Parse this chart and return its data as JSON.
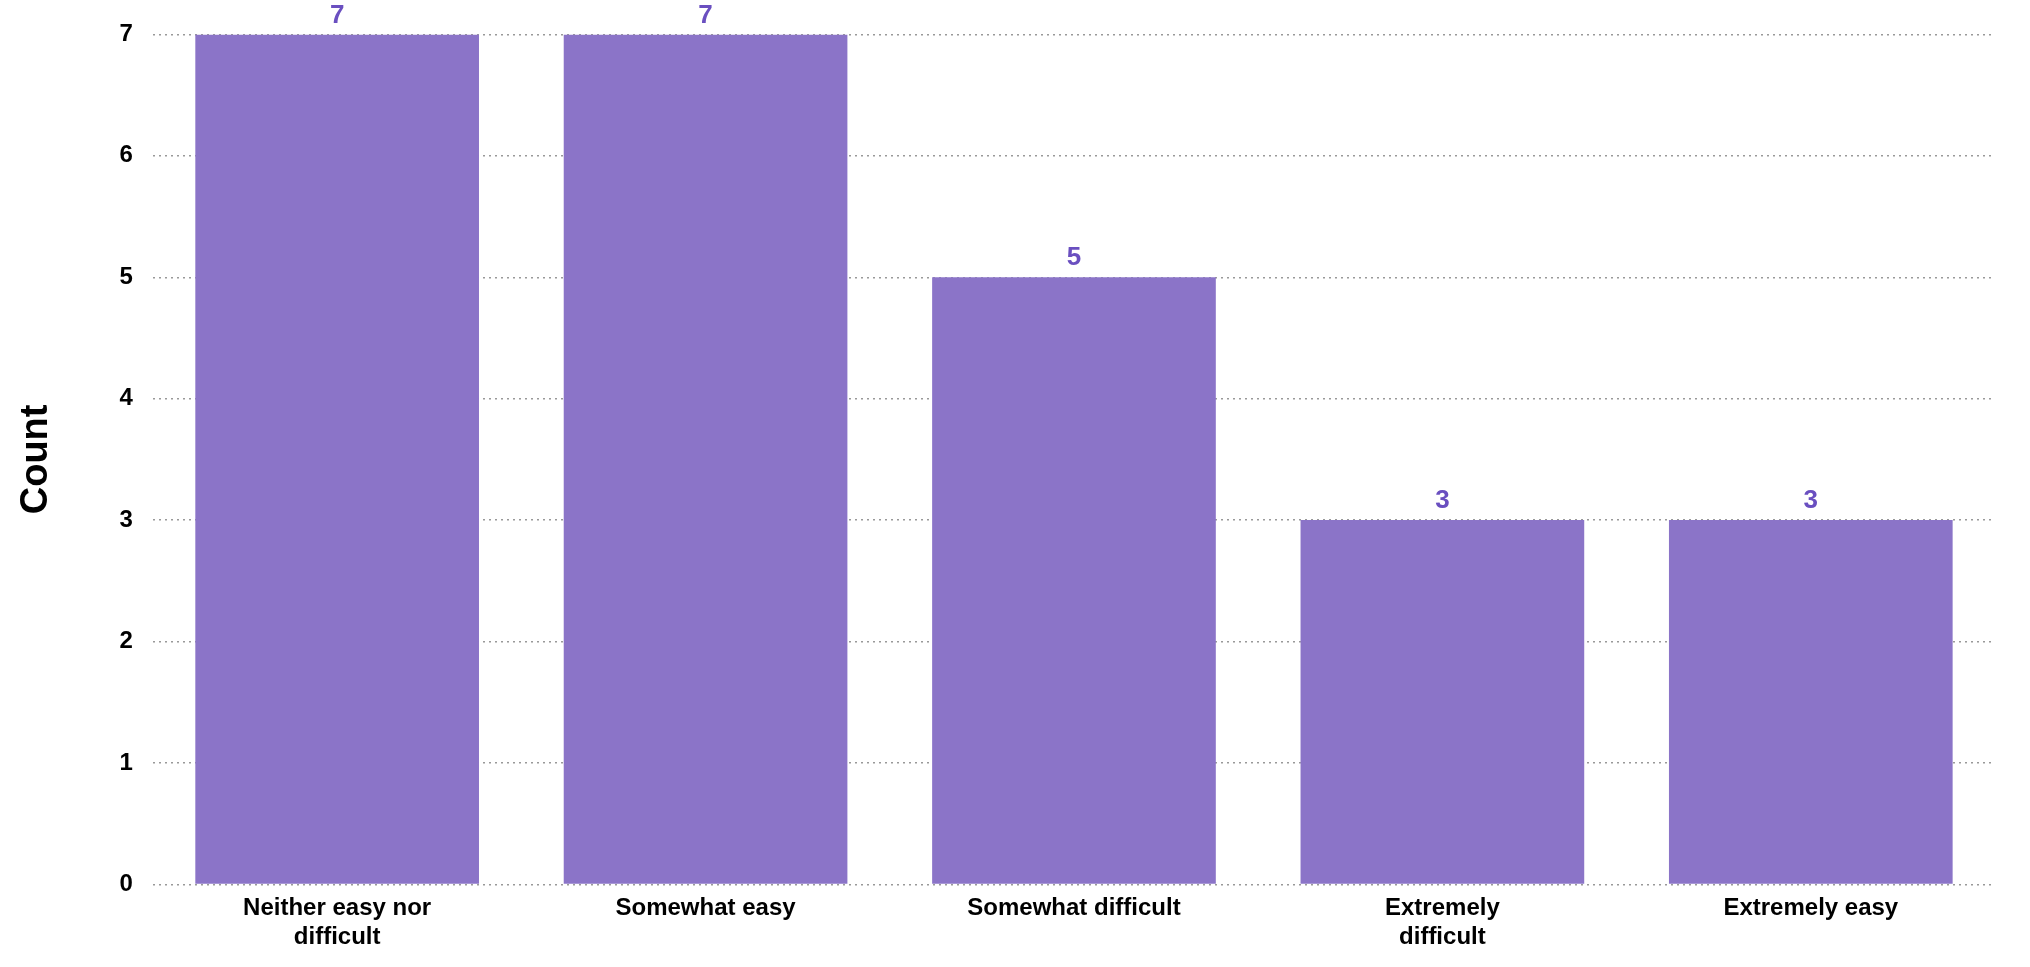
{
  "chart_data": {
    "type": "bar",
    "ylabel": "Count",
    "categories": [
      "Neither easy nor difficult",
      "Somewhat easy",
      "Somewhat difficult",
      "Extremely difficult",
      "Extremely easy"
    ],
    "values": [
      7,
      7,
      5,
      3,
      3
    ],
    "color": "#8b74c8",
    "ylim": [
      0,
      7
    ],
    "yticks": [
      0,
      1,
      2,
      3,
      4,
      5,
      6,
      7
    ],
    "grid": "y",
    "data_labels": true,
    "legend": false
  }
}
